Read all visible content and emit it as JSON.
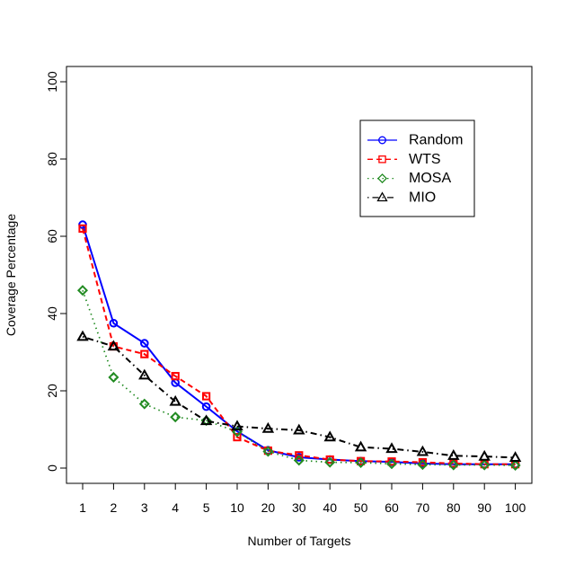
{
  "chart_data": {
    "type": "line",
    "title": "",
    "xlabel": "Number of Targets",
    "ylabel": "Coverage Percentage",
    "categories": [
      "1",
      "2",
      "3",
      "4",
      "5",
      "10",
      "20",
      "30",
      "40",
      "50",
      "60",
      "70",
      "80",
      "90",
      "100"
    ],
    "ylim": [
      0,
      100
    ],
    "yticks": [
      0,
      20,
      40,
      60,
      80,
      100
    ],
    "grid": false,
    "legend_position": "top-right",
    "series": [
      {
        "name": "Random",
        "color": "#0000ff",
        "marker": "circle",
        "line_style": "solid",
        "values": [
          63.0,
          37.5,
          32.3,
          22.1,
          15.9,
          9.5,
          4.6,
          2.8,
          2.2,
          1.8,
          1.6,
          1.2,
          1.0,
          1.0,
          1.0
        ]
      },
      {
        "name": "WTS",
        "color": "#ff0000",
        "marker": "square",
        "line_style": "dashed",
        "values": [
          62.0,
          31.5,
          29.5,
          23.8,
          18.6,
          8.0,
          4.5,
          3.3,
          2.2,
          1.8,
          1.7,
          1.5,
          1.2,
          1.0,
          1.0
        ]
      },
      {
        "name": "MOSA",
        "color": "#228b22",
        "marker": "diamond",
        "line_style": "dotted",
        "values": [
          46.0,
          23.5,
          16.6,
          13.2,
          12.3,
          9.4,
          4.3,
          2.0,
          1.5,
          1.4,
          1.1,
          0.9,
          0.8,
          0.8,
          0.7
        ]
      },
      {
        "name": "MIO",
        "color": "#000000",
        "marker": "triangle",
        "line_style": "dashdot",
        "values": [
          34.0,
          31.5,
          24.0,
          17.2,
          12.2,
          10.8,
          10.2,
          9.8,
          8.0,
          5.4,
          5.0,
          4.2,
          3.2,
          3.0,
          2.7
        ]
      }
    ]
  }
}
